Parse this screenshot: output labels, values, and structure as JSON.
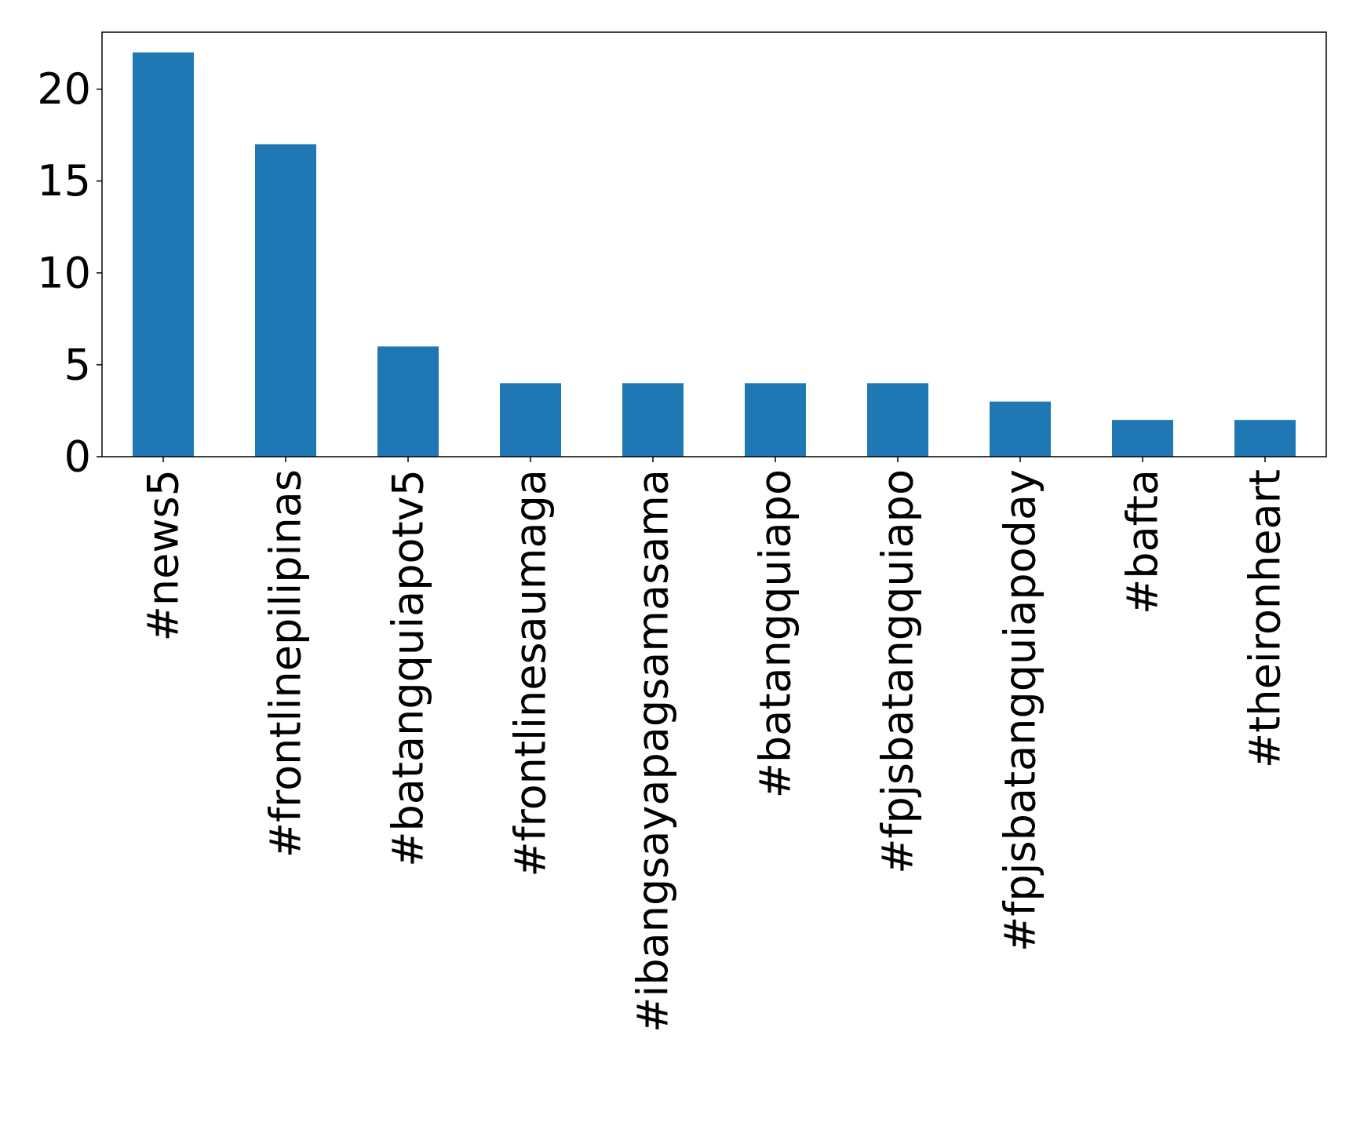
{
  "chart_data": {
    "type": "bar",
    "title": "",
    "xlabel": "",
    "ylabel": "",
    "categories": [
      "#news5",
      "#frontlinepilipinas",
      "#batangquiapotv5",
      "#frontlinesaumaga",
      "#ibangsayapagsamasama",
      "#batangquiapo",
      "#fpjsbatangquiapo",
      "#fpjsbatangquiapoday",
      "#bafta",
      "#theironheart"
    ],
    "values": [
      22,
      17,
      6,
      4,
      4,
      4,
      4,
      3,
      2,
      2
    ],
    "ylim": [
      0,
      23.1
    ],
    "yticks": [
      0,
      5,
      10,
      15,
      20
    ],
    "grid": false,
    "legend": "none",
    "bar_color": "#1f77b4"
  }
}
